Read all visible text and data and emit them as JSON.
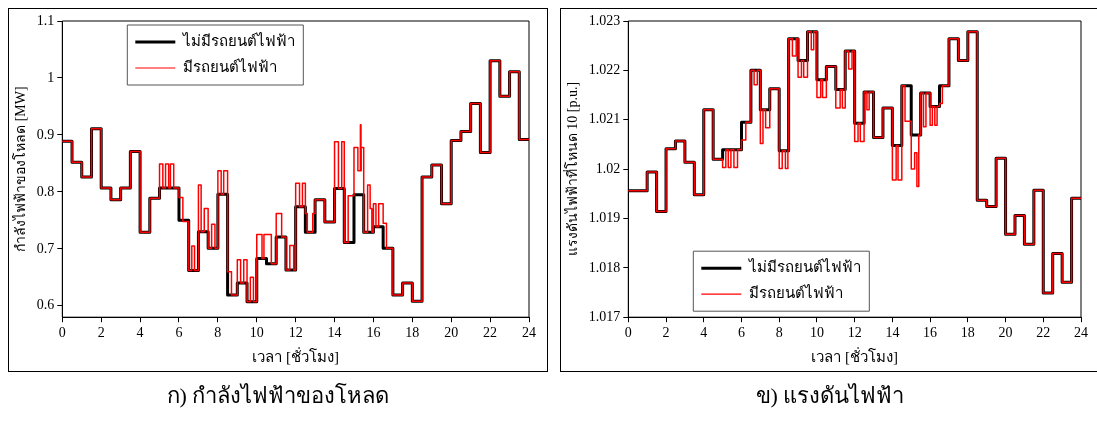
{
  "chart_data": [
    {
      "type": "step",
      "title": "ก) กำลังไฟฟ้าของโหลด",
      "xlabel": "เวลา [ชั่วโมง]",
      "ylabel": "กำลังไฟฟ้าของโหลด [MW]",
      "xlim": [
        0,
        24
      ],
      "xticks": [
        0,
        2,
        4,
        6,
        8,
        10,
        12,
        14,
        16,
        18,
        20,
        22,
        24
      ],
      "ylim": [
        0.58,
        1.1
      ],
      "yticks": [
        0.6,
        0.7,
        0.8,
        0.9,
        1,
        1.1
      ],
      "legend": "top left",
      "marker": "none",
      "line_style": "solid",
      "series": [
        {
          "name": "ไม่มีรถยนต์ไฟฟ้า",
          "color": "#000000",
          "x": [
            0,
            0.5,
            1,
            1.5,
            2,
            2.5,
            3,
            3.5,
            4,
            4.5,
            5,
            5.5,
            6,
            6.5,
            7,
            7.5,
            8,
            8.5,
            9,
            9.5,
            10,
            10.5,
            11,
            11.5,
            12,
            12.5,
            13,
            13.5,
            14,
            14.5,
            15,
            15.5,
            16,
            16.5,
            17,
            17.5,
            18,
            18.5,
            19,
            19.5,
            20,
            20.5,
            21,
            21.5,
            22,
            22.5,
            23,
            23.5,
            24
          ],
          "values": [
            0.889,
            0.852,
            0.826,
            0.911,
            0.807,
            0.786,
            0.807,
            0.871,
            0.729,
            0.789,
            0.807,
            0.807,
            0.75,
            0.662,
            0.73,
            0.701,
            0.796,
            0.619,
            0.64,
            0.607,
            0.683,
            0.674,
            0.721,
            0.663,
            0.774,
            0.729,
            0.786,
            0.747,
            0.806,
            0.711,
            0.795,
            0.729,
            0.739,
            0.701,
            0.619,
            0.64,
            0.608,
            0.826,
            0.847,
            0.779,
            0.89,
            0.906,
            0.955,
            0.869,
            1.03,
            0.968,
            1.011,
            0.892,
            0.892
          ]
        },
        {
          "name": "มีรถยนต์ไฟฟ้า",
          "color": "#ff0000",
          "x": [
            0,
            0.5,
            1,
            1.5,
            2,
            2.5,
            3,
            3.5,
            4,
            4.5,
            5,
            5.17,
            5.31,
            5.47,
            5.56,
            5.73,
            6,
            6.2,
            6.5,
            6.66,
            6.8,
            7,
            7.14,
            7.3,
            7.5,
            7.68,
            7.85,
            8,
            8.17,
            8.3,
            8.5,
            8.7,
            9,
            9.17,
            9.33,
            9.5,
            9.67,
            9.83,
            10,
            10.27,
            10.37,
            10.75,
            11,
            11.28,
            11.5,
            11.7,
            11.9,
            12,
            12.2,
            12.35,
            12.5,
            12.6,
            12.88,
            13,
            13.5,
            14,
            14.2,
            14.37,
            14.5,
            14.7,
            15,
            15.2,
            15.33,
            15.36,
            15.37,
            15.5,
            15.7,
            15.83,
            15.92,
            16,
            16.13,
            16.27,
            16.5,
            16.67,
            17,
            17.5,
            18,
            18.5,
            19,
            19.5,
            20,
            20.5,
            21,
            21.5,
            22,
            22.5,
            23,
            23.5,
            24
          ],
          "values": [
            0.889,
            0.852,
            0.826,
            0.911,
            0.807,
            0.786,
            0.807,
            0.871,
            0.729,
            0.789,
            0.849,
            0.807,
            0.849,
            0.807,
            0.849,
            0.807,
            0.79,
            0.748,
            0.662,
            0.705,
            0.662,
            0.812,
            0.73,
            0.771,
            0.701,
            0.743,
            0.701,
            0.837,
            0.796,
            0.837,
            0.66,
            0.619,
            0.681,
            0.64,
            0.681,
            0.607,
            0.65,
            0.607,
            0.725,
            0.683,
            0.725,
            0.674,
            0.762,
            0.721,
            0.663,
            0.706,
            0.663,
            0.815,
            0.774,
            0.815,
            0.762,
            0.729,
            0.762,
            0.786,
            0.747,
            0.888,
            0.806,
            0.888,
            0.711,
            0.793,
            0.878,
            0.837,
            0.918,
            0.837,
            0.878,
            0.729,
            0.812,
            0.771,
            0.729,
            0.779,
            0.739,
            0.779,
            0.745,
            0.701,
            0.619,
            0.64,
            0.608,
            0.826,
            0.847,
            0.779,
            0.89,
            0.906,
            0.955,
            0.869,
            1.03,
            0.968,
            1.011,
            0.892,
            0.892
          ]
        }
      ]
    },
    {
      "type": "step",
      "title": "ข) แรงดันไฟฟ้า",
      "xlabel": "เวลา [ชั่วโมง]",
      "ylabel": "แรงดันไฟฟ้าที่โหนด 10 [p.u.]",
      "xlim": [
        0,
        24
      ],
      "xticks": [
        0,
        2,
        4,
        6,
        8,
        10,
        12,
        14,
        16,
        18,
        20,
        22,
        24
      ],
      "ylim": [
        1.017,
        1.023
      ],
      "yticks": [
        1.017,
        1.018,
        1.019,
        1.02,
        1.021,
        1.022,
        1.023
      ],
      "legend": "bottom left",
      "marker": "none",
      "line_style": "solid",
      "series": [
        {
          "name": "ไม่มีรถยนต์ไฟฟ้า",
          "color": "#000000",
          "x": [
            0,
            0.5,
            1,
            1.5,
            2,
            2.5,
            3,
            3.5,
            4,
            4.5,
            5,
            5.5,
            6,
            6.5,
            7,
            7.5,
            8,
            8.5,
            9,
            9.5,
            10,
            10.5,
            11,
            11.5,
            12,
            12.5,
            13,
            13.5,
            14,
            14.5,
            15,
            15.5,
            16,
            16.5,
            17,
            17.5,
            18,
            18.5,
            19,
            19.5,
            20,
            20.5,
            21,
            21.5,
            22,
            22.5,
            23,
            23.5,
            24
          ],
          "values": [
            1.01956,
            1.01956,
            1.01994,
            1.01914,
            1.02041,
            1.02057,
            1.02014,
            1.01948,
            1.0212,
            1.0202,
            1.02039,
            1.02039,
            1.02095,
            1.022,
            1.0212,
            1.02163,
            1.02037,
            1.02264,
            1.0222,
            1.02278,
            1.02181,
            1.02208,
            1.02161,
            1.02239,
            1.02093,
            1.02156,
            1.02064,
            1.02124,
            1.02048,
            1.02169,
            1.02069,
            1.02154,
            1.02127,
            1.02169,
            1.02264,
            1.0222,
            1.02278,
            1.01937,
            1.01924,
            1.02022,
            1.01868,
            1.01906,
            1.01848,
            1.01957,
            1.01749,
            1.01829,
            1.01771,
            1.01941,
            1.01941
          ]
        },
        {
          "name": "มีรถยนต์ไฟฟ้า",
          "color": "#ff0000",
          "x": [
            0,
            1,
            1.5,
            2,
            2.5,
            3,
            3.5,
            4,
            4.5,
            5,
            5.17,
            5.3,
            5.44,
            5.6,
            5.79,
            6,
            6.23,
            6.5,
            6.67,
            6.84,
            7,
            7.14,
            7.28,
            7.5,
            8,
            8.16,
            8.33,
            8.46,
            8.5,
            8.7,
            8.9,
            9,
            9.18,
            9.3,
            9.5,
            9.7,
            9.83,
            10,
            10.2,
            10.3,
            10.5,
            11,
            11.23,
            11.35,
            11.5,
            11.68,
            11.86,
            12,
            12.18,
            12.3,
            12.5,
            12.65,
            12.77,
            13,
            13.5,
            14,
            14.2,
            14.3,
            14.5,
            14.67,
            15,
            15.18,
            15.3,
            15.4,
            15.5,
            15.65,
            15.78,
            16,
            16.12,
            16.25,
            16.37,
            16.5,
            16.65,
            17,
            17.5,
            18,
            18.5,
            19,
            19.5,
            20,
            20.5,
            21,
            21.5,
            22,
            22.5,
            23,
            23.5,
            24
          ],
          "values": [
            1.01956,
            1.01994,
            1.01914,
            1.02041,
            1.02057,
            1.02014,
            1.01948,
            1.0212,
            1.0202,
            1.02003,
            1.02039,
            1.02003,
            1.02039,
            1.02003,
            1.02039,
            1.02059,
            1.02095,
            1.022,
            1.02171,
            1.022,
            1.02052,
            1.0212,
            1.02084,
            1.02163,
            1.02001,
            1.02037,
            1.02001,
            1.02037,
            1.02264,
            1.02229,
            1.02264,
            1.02186,
            1.0222,
            1.02186,
            1.02278,
            1.02242,
            1.02278,
            1.02145,
            1.02181,
            1.02145,
            1.02208,
            1.02124,
            1.02161,
            1.02124,
            1.02239,
            1.02203,
            1.02239,
            1.02056,
            1.02093,
            1.02056,
            1.02156,
            1.0212,
            1.02156,
            1.02064,
            1.02124,
            1.01978,
            1.02048,
            1.01978,
            1.02169,
            1.02097,
            1.02,
            1.02033,
            1.01965,
            1.02069,
            1.02154,
            1.02086,
            1.02154,
            1.02089,
            1.02127,
            1.02089,
            1.02127,
            1.02133,
            1.02169,
            1.02264,
            1.0222,
            1.02278,
            1.01937,
            1.01924,
            1.02022,
            1.01868,
            1.01906,
            1.01848,
            1.01957,
            1.01749,
            1.01829,
            1.01771,
            1.01941,
            1.01941
          ]
        }
      ]
    }
  ]
}
